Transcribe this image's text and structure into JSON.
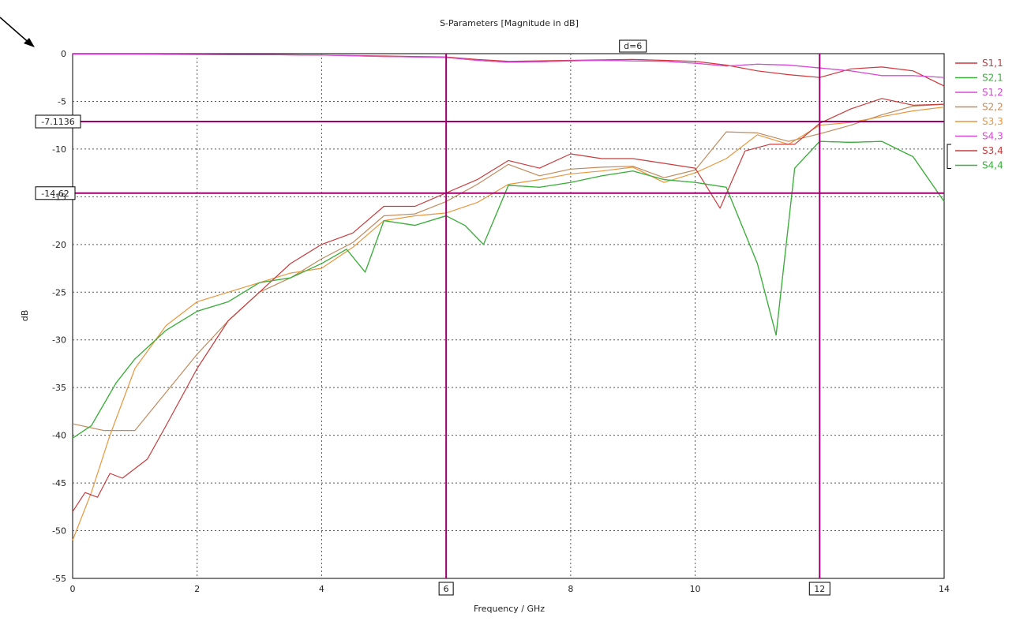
{
  "chart_data": {
    "type": "line",
    "title": "S-Parameters [Magnitude in dB]",
    "xlabel": "Frequency / GHz",
    "ylabel": "dB",
    "xlim": [
      0,
      14
    ],
    "ylim": [
      -55,
      0
    ],
    "xticks": [
      0,
      2,
      4,
      6,
      8,
      10,
      12,
      14
    ],
    "yticks": [
      0,
      -5,
      -10,
      -15,
      -20,
      -25,
      -30,
      -35,
      -40,
      -45,
      -50,
      -55
    ],
    "grid": true,
    "legend_position": "right",
    "markers": {
      "vertical": [
        {
          "x": 6,
          "label": "6"
        },
        {
          "x": 12,
          "label": "12"
        }
      ],
      "horizontal": [
        {
          "y": -7.1136,
          "label": "-7.1136"
        },
        {
          "y": -14.62,
          "label": "-14.62"
        }
      ],
      "delta_label": "d=6",
      "color": "#a0006e"
    },
    "series": [
      {
        "name": "S1,1",
        "color": "#d2343a",
        "x": [
          0,
          0.5,
          1,
          1.5,
          2,
          2.5,
          3,
          3.5,
          4,
          4.5,
          5,
          5.5,
          6,
          6.5,
          7,
          7.5,
          8,
          8.5,
          9,
          9.5,
          10,
          10.5,
          11,
          11.5,
          12,
          12.5,
          13,
          13.5,
          14
        ],
        "values": [
          -0.05,
          -0.05,
          -0.05,
          -0.08,
          -0.08,
          -0.1,
          -0.1,
          -0.12,
          -0.15,
          -0.2,
          -0.25,
          -0.3,
          -0.35,
          -0.6,
          -0.8,
          -0.75,
          -0.7,
          -0.65,
          -0.6,
          -0.7,
          -0.8,
          -1.2,
          -1.8,
          -2.2,
          -2.5,
          -1.6,
          -1.4,
          -1.8,
          -3.4
        ]
      },
      {
        "name": "S2,1",
        "color": "#3cae3c",
        "x": [
          0,
          0.3,
          0.7,
          1,
          1.5,
          2,
          2.5,
          3,
          3.5,
          4,
          4.4,
          4.7,
          5,
          5.5,
          6,
          6.3,
          6.6,
          7,
          7.5,
          8,
          8.5,
          9,
          9.5,
          10,
          10.5,
          11,
          11.3,
          11.6,
          12,
          12.5,
          13,
          13.5,
          14
        ],
        "values": [
          -40.3,
          -39,
          -34.5,
          -32,
          -29,
          -27,
          -26,
          -24,
          -23.5,
          -22,
          -20.5,
          -22.9,
          -17.5,
          -18,
          -17,
          -18,
          -20,
          -13.8,
          -14,
          -13.5,
          -12.8,
          -12.3,
          -13.2,
          -13.5,
          -14,
          -22,
          -29.5,
          -12,
          -9.2,
          -9.3,
          -9.2,
          -10.8,
          -15.5
        ]
      },
      {
        "name": "S1,2",
        "color": "#d64bd6",
        "x": [
          0,
          1,
          2,
          3,
          4,
          5,
          6,
          6.5,
          7,
          7.5,
          8,
          8.5,
          9,
          9.5,
          10,
          10.5,
          11,
          11.5,
          12,
          12.5,
          13,
          13.5,
          14
        ],
        "values": [
          -0.05,
          -0.05,
          -0.08,
          -0.1,
          -0.15,
          -0.3,
          -0.4,
          -0.7,
          -0.9,
          -0.85,
          -0.75,
          -0.7,
          -0.75,
          -0.8,
          -1.0,
          -1.3,
          -1.1,
          -1.2,
          -1.5,
          -1.8,
          -2.3,
          -2.3,
          -2.5
        ]
      },
      {
        "name": "S2,2",
        "color": "#c08a5c",
        "x": [
          0,
          0.5,
          1,
          1.5,
          2,
          2.5,
          3,
          3.5,
          4,
          4.5,
          5,
          5.5,
          6,
          6.5,
          7,
          7.5,
          8,
          8.5,
          9,
          9.5,
          10,
          10.5,
          11,
          11.5,
          12,
          12.5,
          13,
          13.5,
          14
        ],
        "values": [
          -38.8,
          -39.5,
          -39.5,
          -35.5,
          -31.5,
          -28,
          -25,
          -23.5,
          -21.5,
          -19.8,
          -17,
          -16.8,
          -15.5,
          -13.7,
          -11.6,
          -12.8,
          -12.1,
          -11.9,
          -11.8,
          -13,
          -12.2,
          -8.2,
          -8.3,
          -9.2,
          -8.4,
          -7.5,
          -6.4,
          -5.5,
          -5.3
        ]
      },
      {
        "name": "S3,3",
        "color": "#e8963c",
        "x": [
          0,
          0.3,
          0.6,
          1,
          1.5,
          2,
          2.5,
          3,
          3.5,
          4,
          4.5,
          5,
          5.5,
          6,
          6.5,
          7,
          7.5,
          8,
          8.5,
          9,
          9.5,
          10,
          10.5,
          11,
          11.5,
          12,
          12.5,
          13,
          13.5,
          14
        ],
        "values": [
          -51,
          -46,
          -40,
          -33,
          -28.5,
          -26,
          -25,
          -24,
          -23,
          -22.5,
          -20.3,
          -17.5,
          -17,
          -16.7,
          -15.6,
          -13.7,
          -13.2,
          -12.6,
          -12.3,
          -11.9,
          -13.5,
          -12.5,
          -11,
          -8.5,
          -9.5,
          -7.5,
          -7.2,
          -6.6,
          -6.0,
          -5.6
        ]
      },
      {
        "name": "S4,3",
        "color": "#d64bd6",
        "x": [
          0,
          1,
          2,
          3,
          4,
          5,
          6,
          6.5,
          7,
          7.5,
          8,
          8.5,
          9,
          9.5,
          10,
          10.5,
          11,
          11.5,
          12,
          12.5,
          13,
          13.5,
          14
        ],
        "values": [
          -0.05,
          -0.05,
          -0.08,
          -0.1,
          -0.15,
          -0.3,
          -0.4,
          -0.7,
          -0.9,
          -0.85,
          -0.75,
          -0.7,
          -0.75,
          -0.8,
          -1.0,
          -1.3,
          -1.1,
          -1.2,
          -1.5,
          -1.8,
          -2.3,
          -2.3,
          -2.5
        ]
      },
      {
        "name": "S3,4",
        "color": "#c83c3c",
        "x": [
          0,
          0.2,
          0.4,
          0.6,
          0.8,
          1.2,
          1.5,
          2,
          2.5,
          3,
          3.5,
          4,
          4.5,
          5,
          5.5,
          6,
          6.5,
          7,
          7.5,
          8,
          8.5,
          9,
          9.5,
          10,
          10.4,
          10.8,
          11.2,
          11.6,
          12,
          12.5,
          13,
          13.5,
          14
        ],
        "values": [
          -48,
          -46,
          -46.5,
          -44,
          -44.5,
          -42.5,
          -39,
          -33,
          -28,
          -25,
          -22,
          -20,
          -18.8,
          -16,
          -16,
          -14.6,
          -13.2,
          -11.2,
          -12,
          -10.5,
          -11,
          -11,
          -11.5,
          -12,
          -16.2,
          -10.2,
          -9.5,
          -9.5,
          -7.3,
          -5.8,
          -4.7,
          -5.4,
          -5.3
        ]
      },
      {
        "name": "S4,4",
        "color": "#3cae3c",
        "x": [
          0,
          0.3,
          0.7,
          1,
          1.5,
          2,
          2.5,
          3,
          3.5,
          4,
          4.4,
          4.7,
          5,
          5.5,
          6,
          6.3,
          6.6,
          7,
          7.5,
          8,
          8.5,
          9,
          9.5,
          10,
          10.5,
          11,
          11.3,
          11.6,
          12,
          12.5,
          13,
          13.5,
          14
        ],
        "values": [
          -40.3,
          -39,
          -34.5,
          -32,
          -29,
          -27,
          -26,
          -24,
          -23.5,
          -22,
          -20.5,
          -22.9,
          -17.5,
          -18,
          -17,
          -18,
          -20,
          -13.8,
          -14,
          -13.5,
          -12.8,
          -12.3,
          -13.2,
          -13.5,
          -14,
          -22,
          -29.5,
          -12,
          -9.2,
          -9.3,
          -9.2,
          -10.8,
          -15.5
        ]
      }
    ]
  }
}
